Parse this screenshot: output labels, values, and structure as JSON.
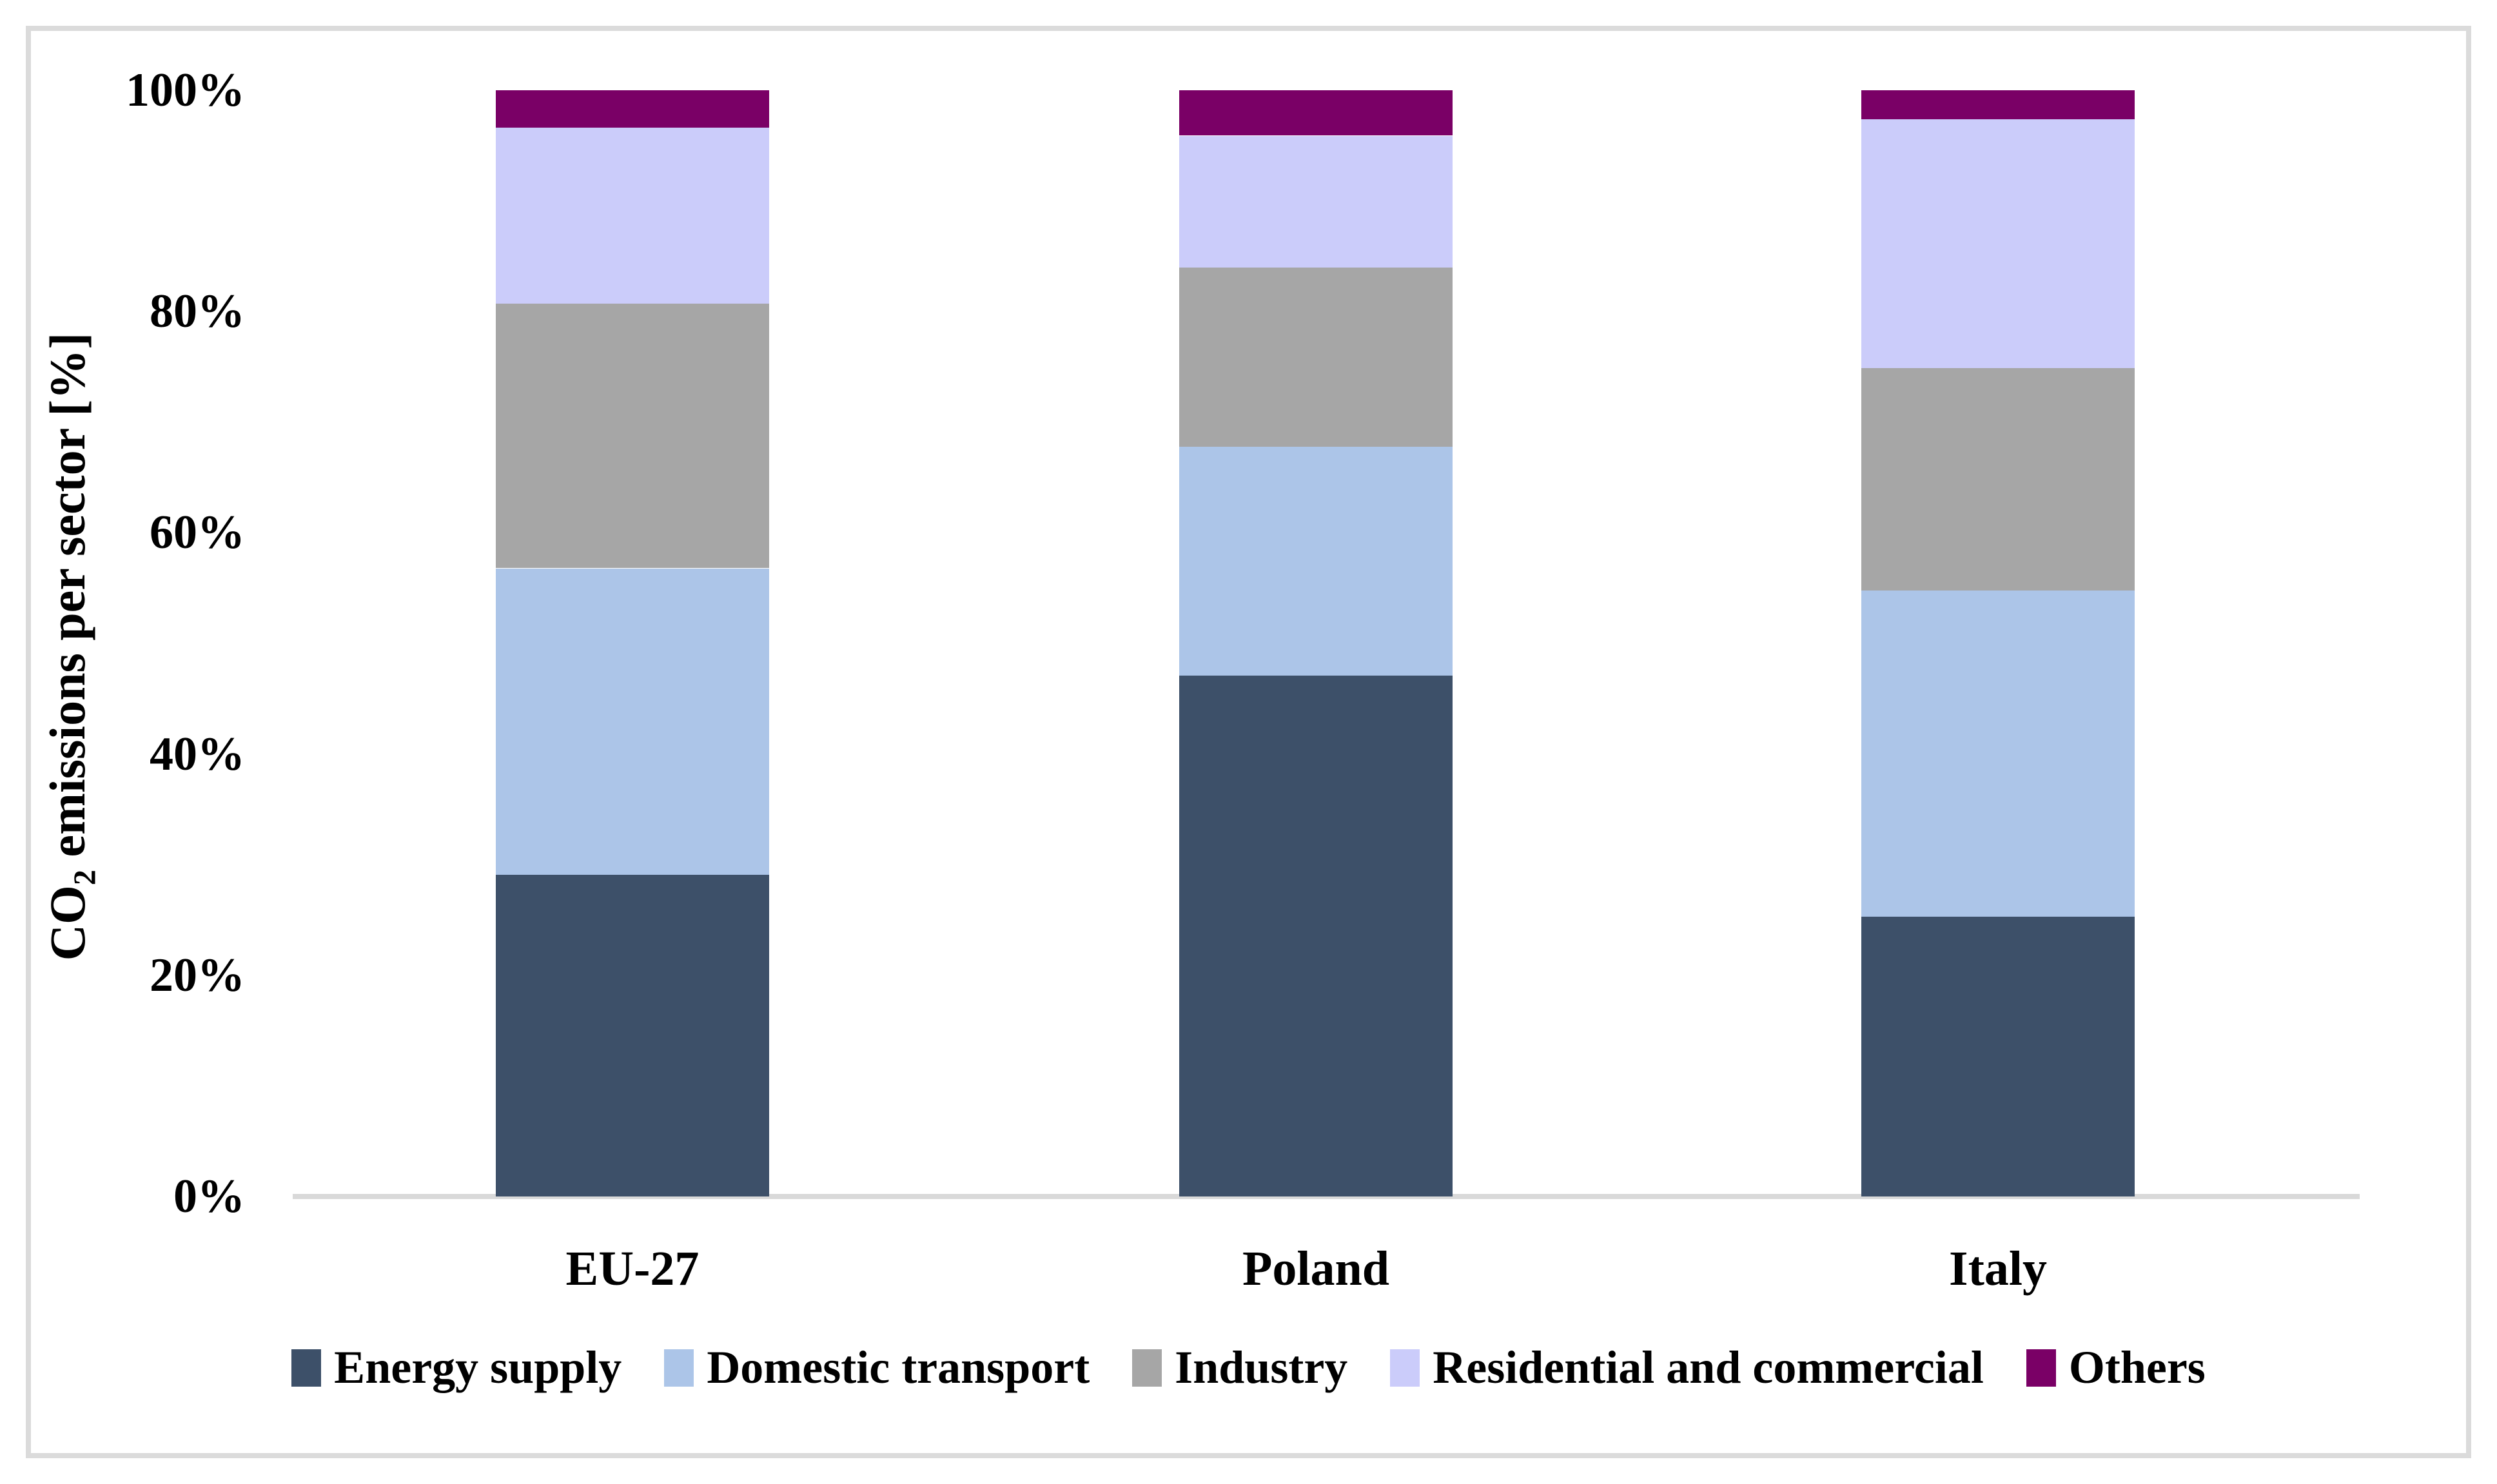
{
  "figure": {
    "background_color": "#FFFFFF",
    "frame_border_color": "#DBDBDB",
    "axis_line_color": "#D9D9D9"
  },
  "labels": {
    "y_title_prefix": "CO",
    "y_title_sub": "2",
    "y_title_suffix": " emissions per sector [%]"
  },
  "chart_data": {
    "type": "bar",
    "stacked": true,
    "title": "",
    "xlabel": "",
    "ylabel": "CO2 emissions per sector [%]",
    "ylim": [
      0,
      100
    ],
    "yticks": [
      "0%",
      "20%",
      "40%",
      "60%",
      "80%",
      "100%"
    ],
    "grid": false,
    "legend_position": "bottom",
    "categories": [
      "EU-27",
      "Poland",
      "Italy"
    ],
    "series": [
      {
        "name": "Energy supply",
        "color": "#3D5069",
        "values": [
          29.1,
          47.1,
          25.3
        ]
      },
      {
        "name": "Domestic transport",
        "color": "#ACC5E8",
        "values": [
          27.7,
          20.7,
          29.5
        ]
      },
      {
        "name": "Industry",
        "color": "#A6A6A6",
        "values": [
          23.9,
          16.2,
          20.1
        ]
      },
      {
        "name": "Residential and commercial",
        "color": "#CBCCFA",
        "values": [
          15.9,
          11.9,
          22.5
        ]
      },
      {
        "name": "Others",
        "color": "#7A0066",
        "values": [
          3.4,
          4.1,
          2.6
        ]
      }
    ]
  }
}
